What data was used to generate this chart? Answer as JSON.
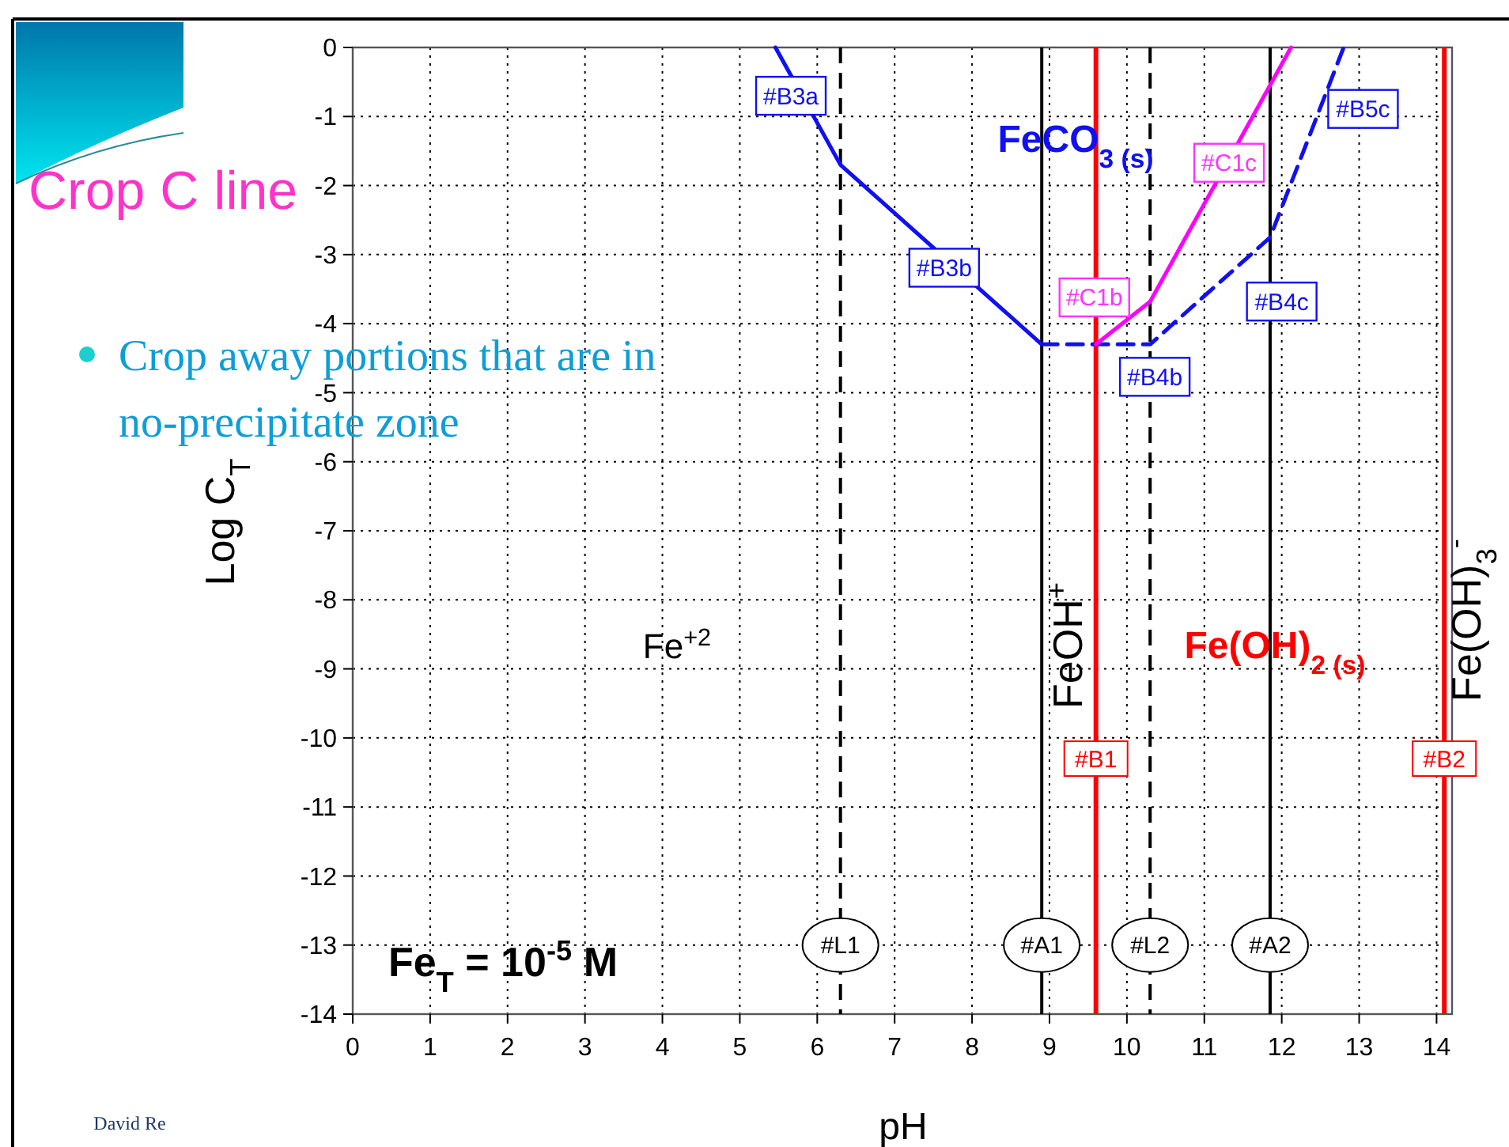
{
  "chart_data": {
    "type": "line",
    "title": "Crop C line",
    "subtitle": "Crop away portions that are in no-precipitate zone",
    "xlabel": "pH",
    "ylabel": "Log C$_{T}$",
    "xlim": [
      0,
      14.2
    ],
    "xticks": [
      0,
      1,
      2,
      3,
      4,
      5,
      6,
      7,
      8,
      9,
      10,
      11,
      12,
      13,
      14
    ],
    "ylim": [
      -14,
      0
    ],
    "yticks": [
      0,
      -1,
      -2,
      -3,
      -4,
      -5,
      -6,
      -7,
      -8,
      -9,
      -10,
      -11,
      -12,
      -13,
      -14
    ],
    "grid": true,
    "marker": "none",
    "series": [
      {
        "color": "#1010f0",
        "line_style": "solid",
        "x": [
          5.46,
          6.3,
          8.9
        ],
        "values": [
          0,
          -1.7,
          -4.3
        ]
      },
      {
        "color": "#1010f0",
        "line_style": "dashed",
        "x": [
          8.9,
          10.3,
          11.85,
          12.8
        ],
        "values": [
          -4.3,
          -4.3,
          -2.75,
          0
        ]
      },
      {
        "color": "#ff00ff",
        "line_style": "solid",
        "x": [
          9.6,
          10.3,
          12.12
        ],
        "values": [
          -4.3,
          -3.68,
          0
        ]
      }
    ],
    "ref_lines": [
      {
        "axis": "x",
        "value": 6.3,
        "label": "#L1",
        "color": "#000000",
        "line_style": "dashed"
      },
      {
        "axis": "x",
        "value": 8.9,
        "label": "#A1",
        "color": "#000000",
        "line_style": "solid"
      },
      {
        "axis": "x",
        "value": 9.6,
        "label": "#B1",
        "color": "#ff0000",
        "line_style": "solid"
      },
      {
        "axis": "x",
        "value": 10.3,
        "label": "#L2",
        "color": "#000000",
        "line_style": "dashed"
      },
      {
        "axis": "x",
        "value": 11.85,
        "label": "#A2",
        "color": "#000000",
        "line_style": "solid"
      },
      {
        "axis": "x",
        "value": 14.1,
        "label": "#B2",
        "color": "#ff0000",
        "line_style": "solid"
      }
    ],
    "annotations": [
      {
        "text": "#B3a",
        "x": 5.66,
        "y": -0.7
      },
      {
        "text": "#B3b",
        "x": 7.64,
        "y": -3.19
      },
      {
        "text": "#C1b",
        "x": 9.58,
        "y": -3.62
      },
      {
        "text": "#C1c",
        "x": 11.32,
        "y": -1.67
      },
      {
        "text": "#B5c",
        "x": 13.05,
        "y": -0.89
      },
      {
        "text": "#B4c",
        "x": 12.0,
        "y": -3.68
      },
      {
        "text": "#B4b",
        "x": 10.36,
        "y": -4.77
      },
      "FeCO$_{3 (s)}$",
      "Fe$^{+2}$",
      "FeOH$^{+}$",
      "Fe(OH)$_{2 (s)}$",
      "Fe(OH)$_{3}$$^{-}$",
      "Fe$_{T}$ = 10$^{-5}$ M",
      "David Re"
    ]
  }
}
